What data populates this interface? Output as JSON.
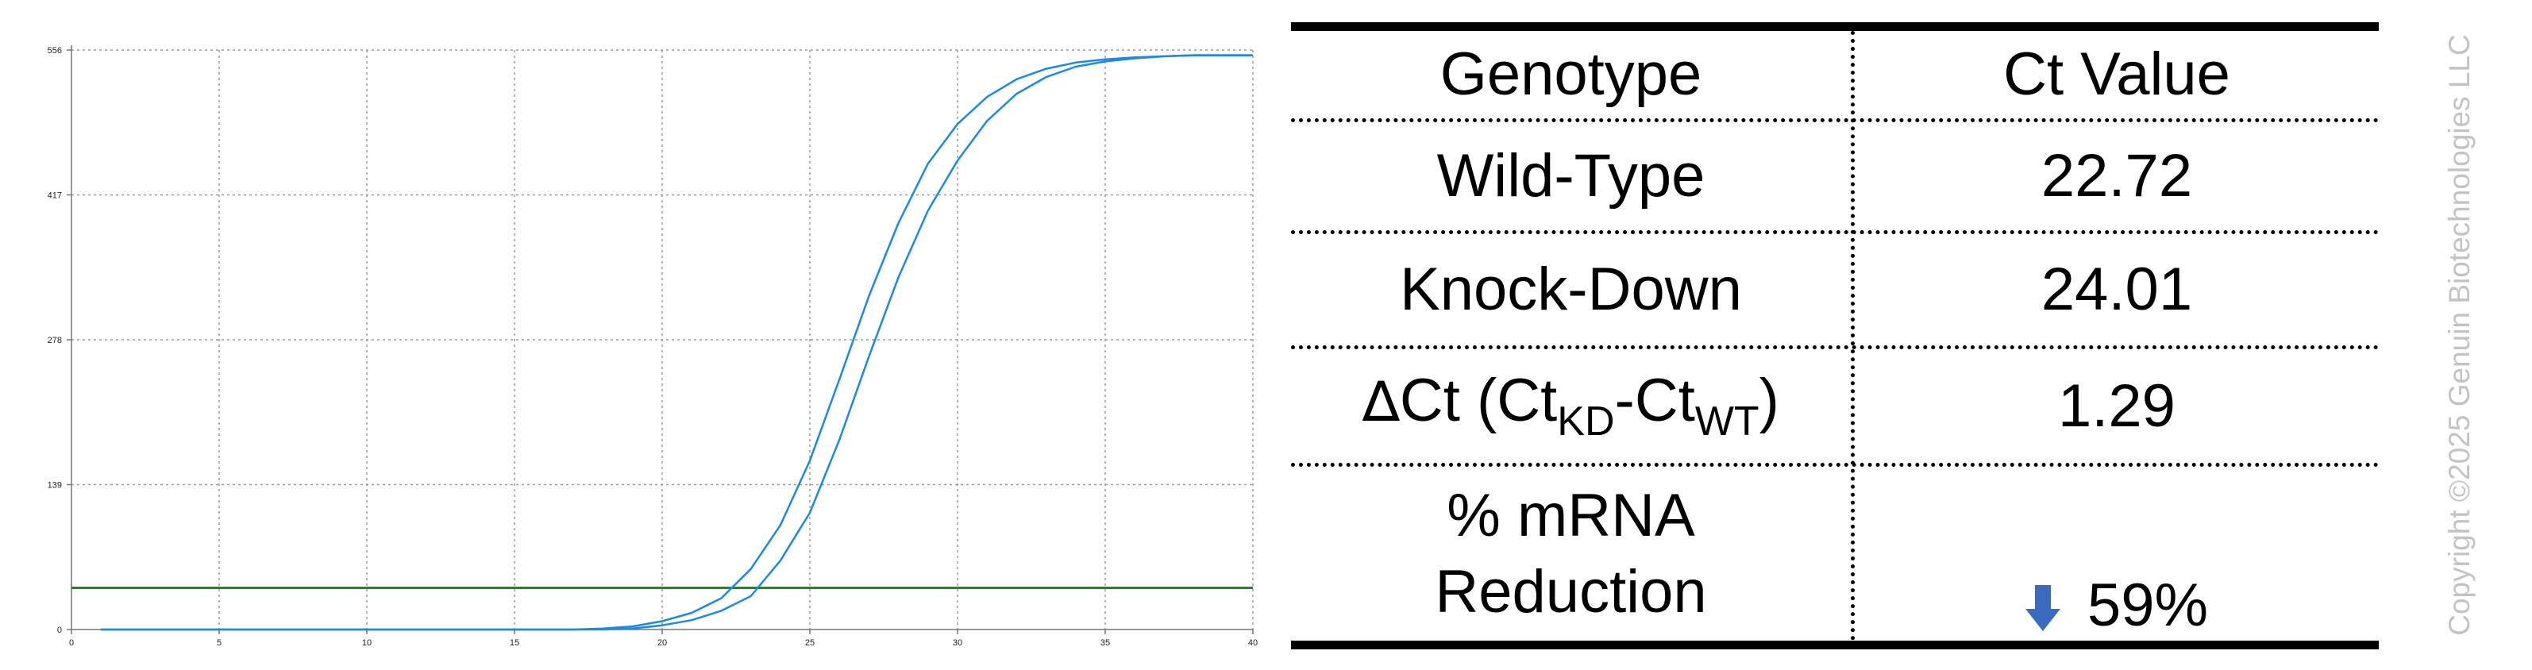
{
  "chart_data": {
    "type": "line",
    "title": "",
    "xlabel": "",
    "ylabel": "",
    "xlim": [
      0,
      40
    ],
    "ylim": [
      0,
      556
    ],
    "x_ticks": [
      0,
      5,
      10,
      15,
      20,
      25,
      30,
      35,
      40
    ],
    "y_ticks": [
      0,
      139,
      278,
      417,
      556
    ],
    "grid": true,
    "legend": "none",
    "colors": {
      "curve": "#1e88e5",
      "threshold": "#1a8a1a",
      "grid": "#9a9a9a"
    },
    "threshold": 40,
    "series": [
      {
        "x": [
          1,
          17,
          18,
          19,
          20,
          21,
          22,
          23,
          24,
          25,
          26,
          27,
          28,
          29,
          30,
          31,
          32,
          33,
          34,
          35,
          36,
          37,
          38,
          39,
          40
        ],
        "values": [
          0,
          0,
          1,
          3,
          8,
          16,
          30,
          58,
          100,
          162,
          240,
          320,
          390,
          447,
          485,
          511,
          528,
          538,
          544,
          547,
          549,
          550,
          551,
          551,
          551
        ]
      },
      {
        "x": [
          1,
          18,
          19,
          20,
          21,
          22,
          23,
          24,
          25,
          26,
          27,
          28,
          29,
          30,
          31,
          32,
          33,
          34,
          35,
          36,
          37,
          38,
          39,
          40
        ],
        "values": [
          0,
          0,
          1,
          4,
          9,
          18,
          32,
          66,
          112,
          182,
          262,
          338,
          402,
          450,
          488,
          514,
          530,
          540,
          545,
          548,
          550,
          551,
          551,
          551
        ]
      }
    ]
  },
  "table": {
    "header": {
      "genotype": "Genotype",
      "ct_value": "Ct Value"
    },
    "rows": {
      "wild_type": {
        "label": "Wild-Type",
        "value": "22.72"
      },
      "knock_down": {
        "label": "Knock-Down",
        "value": "24.01"
      },
      "delta_ct": {
        "delta_symbol": "∆",
        "label_prefix": "Ct (Ct",
        "sub_kd": "KD",
        "dash": "-Ct",
        "sub_wt": "WT",
        "close": ")",
        "value": "1.29"
      },
      "reduction": {
        "label_line1": "% mRNA",
        "label_line2": "Reduction",
        "value": "59%",
        "icon": "down-arrow-icon",
        "icon_color": "#3a6bbf"
      }
    }
  },
  "copyright": "Copyright ©2025 Genuin Biotechnologies LLC"
}
